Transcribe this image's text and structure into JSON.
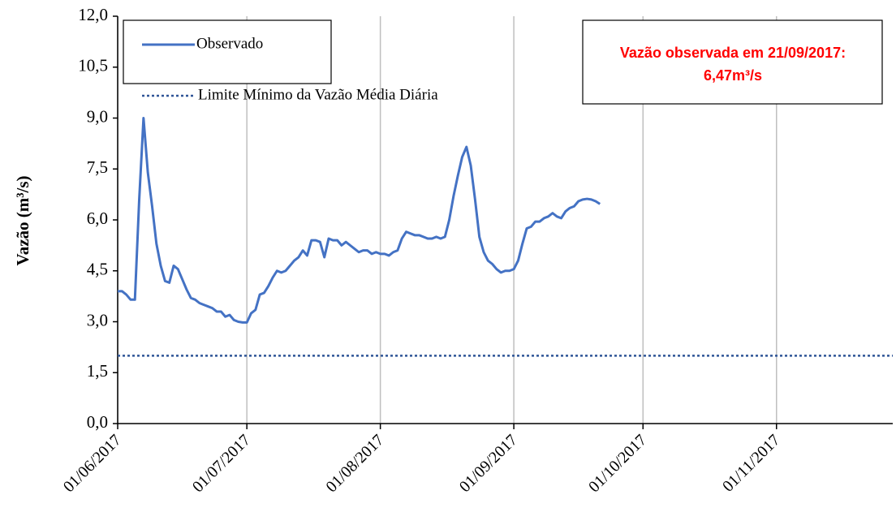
{
  "chart_data": {
    "type": "line",
    "y_label": "Vazão (m³/s)",
    "x": [
      "01/06/2017",
      "02/06/2017",
      "03/06/2017",
      "04/06/2017",
      "05/06/2017",
      "06/06/2017",
      "07/06/2017",
      "08/06/2017",
      "09/06/2017",
      "10/06/2017",
      "11/06/2017",
      "12/06/2017",
      "13/06/2017",
      "14/06/2017",
      "15/06/2017",
      "16/06/2017",
      "17/06/2017",
      "18/06/2017",
      "19/06/2017",
      "20/06/2017",
      "21/06/2017",
      "22/06/2017",
      "23/06/2017",
      "24/06/2017",
      "25/06/2017",
      "26/06/2017",
      "27/06/2017",
      "28/06/2017",
      "29/06/2017",
      "30/06/2017",
      "01/07/2017",
      "02/07/2017",
      "03/07/2017",
      "04/07/2017",
      "05/07/2017",
      "06/07/2017",
      "07/07/2017",
      "08/07/2017",
      "09/07/2017",
      "10/07/2017",
      "11/07/2017",
      "12/07/2017",
      "13/07/2017",
      "14/07/2017",
      "15/07/2017",
      "16/07/2017",
      "17/07/2017",
      "18/07/2017",
      "19/07/2017",
      "20/07/2017",
      "21/07/2017",
      "22/07/2017",
      "23/07/2017",
      "24/07/2017",
      "25/07/2017",
      "26/07/2017",
      "27/07/2017",
      "28/07/2017",
      "29/07/2017",
      "30/07/2017",
      "31/07/2017",
      "01/08/2017",
      "02/08/2017",
      "03/08/2017",
      "04/08/2017",
      "05/08/2017",
      "06/08/2017",
      "07/08/2017",
      "08/08/2017",
      "09/08/2017",
      "10/08/2017",
      "11/08/2017",
      "12/08/2017",
      "13/08/2017",
      "14/08/2017",
      "15/08/2017",
      "16/08/2017",
      "17/08/2017",
      "18/08/2017",
      "19/08/2017",
      "20/08/2017",
      "21/08/2017",
      "22/08/2017",
      "23/08/2017",
      "24/08/2017",
      "25/08/2017",
      "26/08/2017",
      "27/08/2017",
      "28/08/2017",
      "29/08/2017",
      "30/08/2017",
      "31/08/2017",
      "01/09/2017",
      "02/09/2017",
      "03/09/2017",
      "04/09/2017",
      "05/09/2017",
      "06/09/2017",
      "07/09/2017",
      "08/09/2017",
      "09/09/2017",
      "10/09/2017",
      "11/09/2017",
      "12/09/2017",
      "13/09/2017",
      "14/09/2017",
      "15/09/2017",
      "16/09/2017",
      "17/09/2017",
      "18/09/2017",
      "19/09/2017",
      "20/09/2017",
      "21/09/2017"
    ],
    "series": [
      {
        "name": "Observado",
        "color": "#4472c4",
        "values": [
          3.9,
          3.9,
          3.8,
          3.65,
          3.65,
          6.6,
          9.0,
          7.4,
          6.4,
          5.3,
          4.65,
          4.2,
          4.15,
          4.65,
          4.55,
          4.25,
          3.95,
          3.7,
          3.65,
          3.55,
          3.5,
          3.45,
          3.4,
          3.3,
          3.3,
          3.15,
          3.2,
          3.05,
          3.0,
          2.98,
          2.98,
          3.25,
          3.35,
          3.8,
          3.85,
          4.05,
          4.3,
          4.5,
          4.45,
          4.5,
          4.65,
          4.8,
          4.9,
          5.1,
          4.95,
          5.4,
          5.4,
          5.35,
          4.9,
          5.45,
          5.4,
          5.4,
          5.25,
          5.35,
          5.25,
          5.15,
          5.05,
          5.1,
          5.1,
          5.0,
          5.05,
          5.0,
          5.0,
          4.95,
          5.05,
          5.1,
          5.45,
          5.65,
          5.6,
          5.55,
          5.55,
          5.5,
          5.45,
          5.45,
          5.5,
          5.45,
          5.5,
          6.0,
          6.7,
          7.3,
          7.85,
          8.15,
          7.6,
          6.6,
          5.5,
          5.05,
          4.8,
          4.7,
          4.55,
          4.45,
          4.5,
          4.5,
          4.55,
          4.8,
          5.3,
          5.75,
          5.8,
          5.95,
          5.95,
          6.05,
          6.1,
          6.2,
          6.1,
          6.05,
          6.25,
          6.35,
          6.4,
          6.55,
          6.6,
          6.62,
          6.6,
          6.55,
          6.47
        ]
      }
    ],
    "reference_lines": [
      {
        "name": "Limite Mínimo da Vazão Média Diária",
        "value": 2.0,
        "color": "#2f5597",
        "style": "dotted"
      }
    ],
    "annotation": [
      "Vazão observada em 21/09/2017:",
      "6,47m³/s"
    ],
    "annotation_color": "#ff0000",
    "xlim": [
      "01/06/2017",
      "28/11/2017"
    ],
    "xticks": [
      "01/06/2017",
      "01/07/2017",
      "01/08/2017",
      "01/09/2017",
      "01/10/2017",
      "01/11/2017"
    ],
    "ylim": [
      0,
      12
    ],
    "yticks": [
      {
        "value": 0,
        "label": "0,0"
      },
      {
        "value": 1.5,
        "label": "1,5"
      },
      {
        "value": 3,
        "label": "3,0"
      },
      {
        "value": 4.5,
        "label": "4,5"
      },
      {
        "value": 6,
        "label": "6,0"
      },
      {
        "value": 7.5,
        "label": "7,5"
      },
      {
        "value": 9,
        "label": "9,0"
      },
      {
        "value": 10.5,
        "label": "10,5"
      },
      {
        "value": 12,
        "label": "12,0"
      }
    ],
    "grid": "x",
    "legend": "top-left"
  }
}
